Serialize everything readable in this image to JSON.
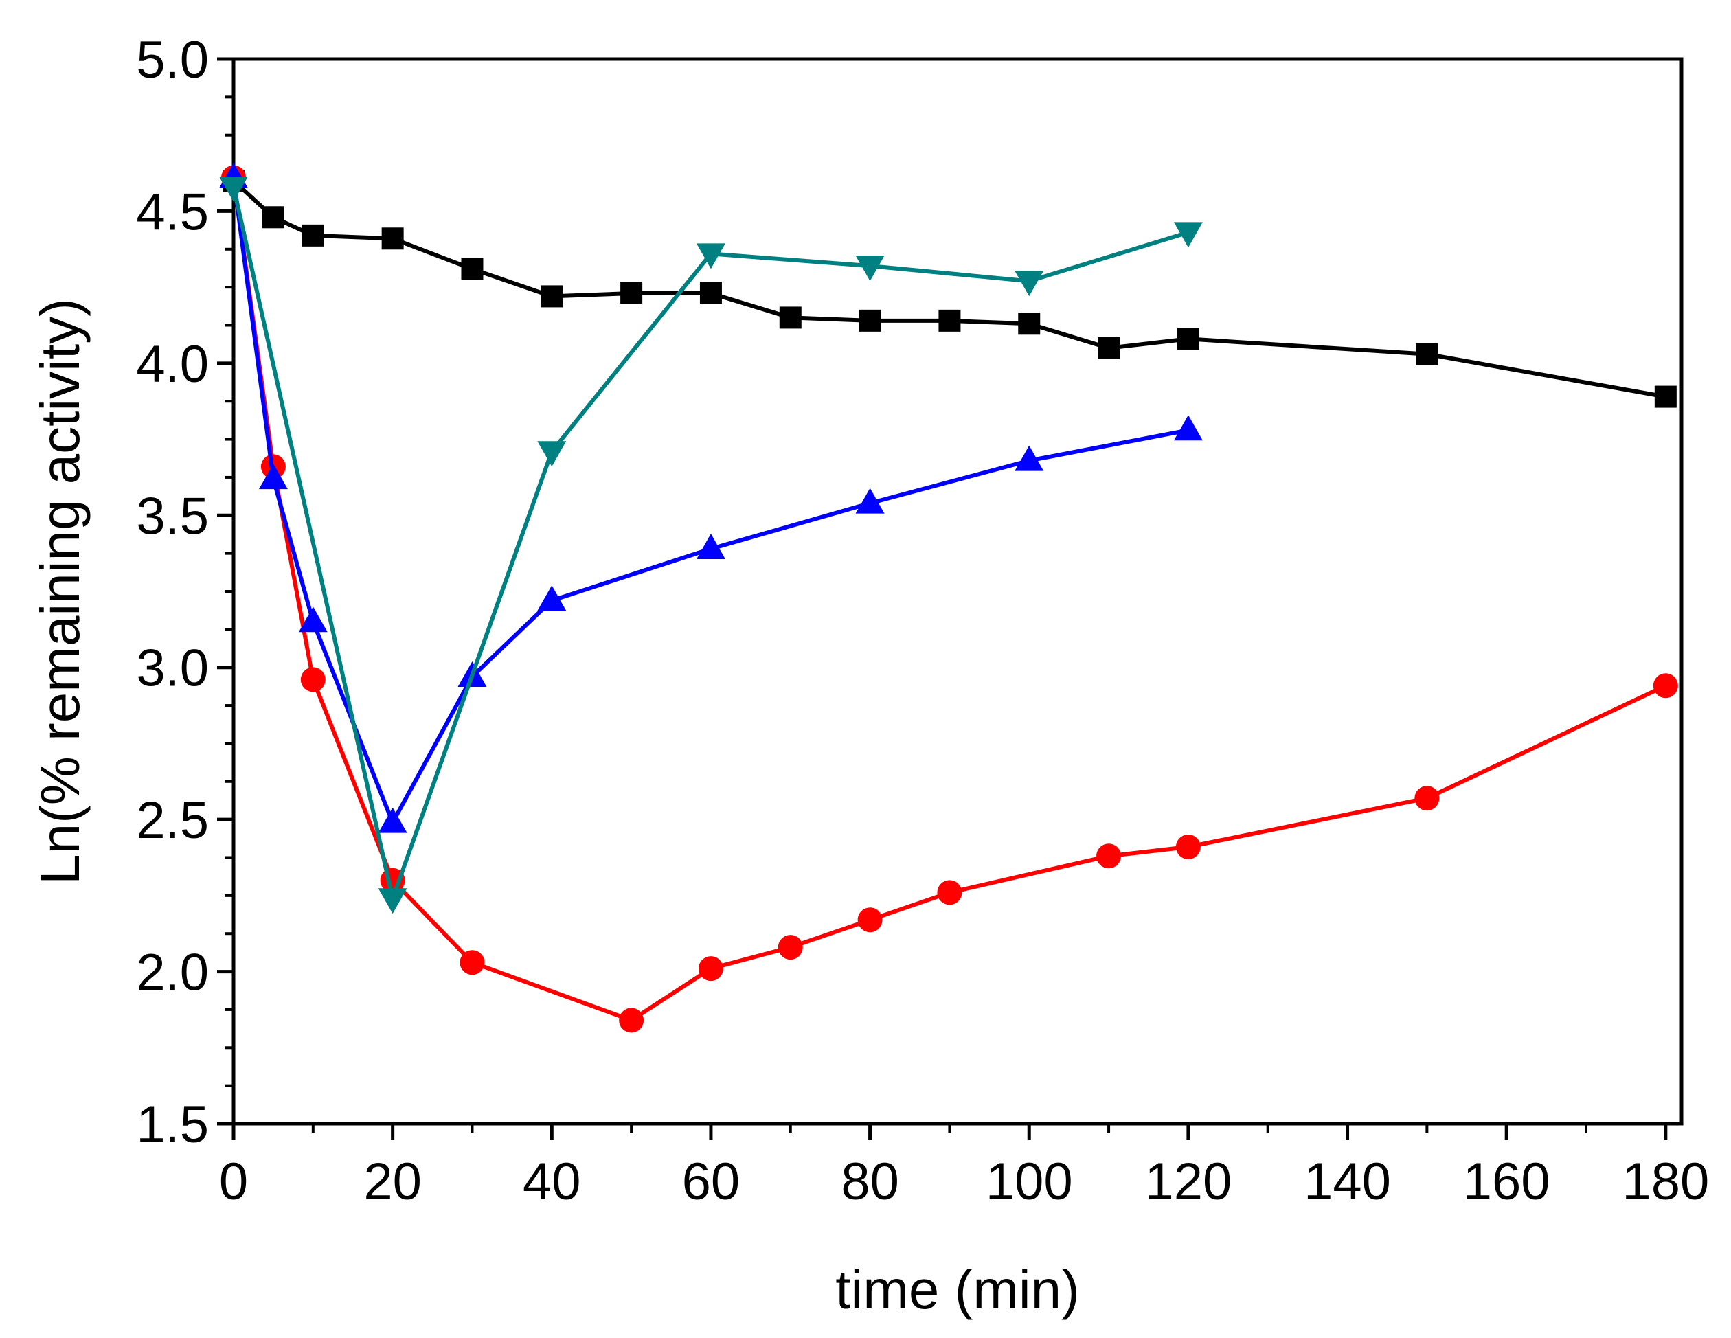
{
  "chart_data": {
    "type": "line",
    "title": "",
    "xlabel": "time (min)",
    "ylabel": "Ln(% remaining activity)",
    "xlim": [
      0,
      182
    ],
    "ylim": [
      1.5,
      5.0
    ],
    "xticks": [
      0,
      20,
      40,
      60,
      80,
      100,
      120,
      140,
      160,
      180
    ],
    "xtick_labels": [
      "0",
      "20",
      "40",
      "60",
      "80",
      "100",
      "120",
      "140",
      "160",
      "180"
    ],
    "yticks": [
      1.5,
      2.0,
      2.5,
      3.0,
      3.5,
      4.0,
      4.5,
      5.0
    ],
    "ytick_labels": [
      "1.5",
      "2.0",
      "2.5",
      "3.0",
      "3.5",
      "4.0",
      "4.5",
      "5.0"
    ],
    "grid": false,
    "series": [
      {
        "name": "black squares",
        "color": "#000000",
        "marker": "square",
        "x": [
          0,
          5,
          10,
          20,
          30,
          40,
          50,
          60,
          70,
          80,
          90,
          100,
          110,
          120,
          150,
          180
        ],
        "y": [
          4.6,
          4.48,
          4.42,
          4.41,
          4.31,
          4.22,
          4.23,
          4.23,
          4.15,
          4.14,
          4.14,
          4.13,
          4.05,
          4.08,
          4.03,
          3.89
        ]
      },
      {
        "name": "red circles",
        "color": "#ff0000",
        "marker": "circle",
        "x": [
          0,
          5,
          10,
          20,
          30,
          50,
          60,
          70,
          80,
          90,
          110,
          120,
          150,
          180
        ],
        "y": [
          4.61,
          3.66,
          2.96,
          2.3,
          2.03,
          1.84,
          2.01,
          2.08,
          2.17,
          2.26,
          2.38,
          2.41,
          2.57,
          2.94
        ]
      },
      {
        "name": "blue triangles",
        "color": "#0000ff",
        "marker": "triangle-up",
        "x": [
          0,
          5,
          10,
          20,
          30,
          40,
          60,
          80,
          100,
          120
        ],
        "y": [
          4.61,
          3.62,
          3.15,
          2.49,
          2.97,
          3.22,
          3.39,
          3.54,
          3.68,
          3.78
        ]
      },
      {
        "name": "teal triangles",
        "color": "#008080",
        "marker": "triangle-down",
        "x": [
          0,
          20,
          40,
          60,
          80,
          100,
          120
        ],
        "y": [
          4.58,
          2.24,
          3.71,
          4.36,
          4.32,
          4.27,
          4.43
        ]
      }
    ]
  }
}
